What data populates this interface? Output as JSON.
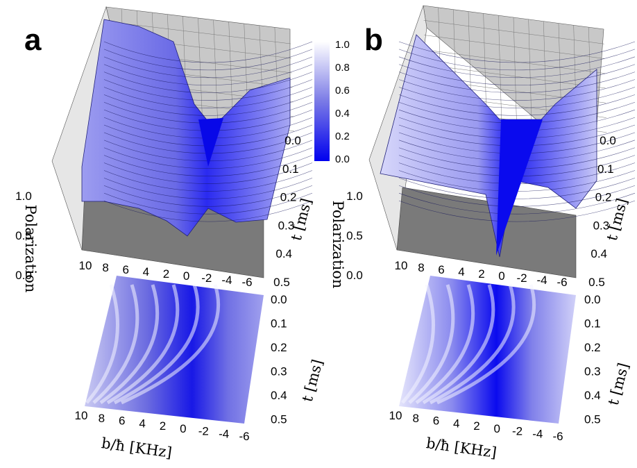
{
  "chart_data": [
    {
      "type": "surface3d",
      "panel": "a",
      "x_axis": {
        "label": "b/ħ [KHz]",
        "ticks": [
          "10",
          "8",
          "6",
          "4",
          "2",
          "0",
          "-2",
          "-4",
          "-6"
        ],
        "range": [
          10,
          -6
        ]
      },
      "t_axis": {
        "label": "t [ms]",
        "ticks": [
          "0.0",
          "0.1",
          "0.2",
          "0.3",
          "0.4",
          "0.5"
        ],
        "range": [
          0.0,
          0.5
        ]
      },
      "z_axis": {
        "label": "Polarization",
        "ticks": [
          "1.0",
          "0.5",
          "0.0"
        ],
        "range": [
          0.0,
          1.0
        ]
      },
      "colorbar": {
        "ticks": [
          "1.0",
          "0.8",
          "0.6",
          "0.4",
          "0.2",
          "0.0"
        ],
        "range": [
          0.0,
          1.0
        ],
        "low_color": "#0000ee",
        "high_color": "#ffffff"
      },
      "heatmap": {
        "x_ticks": [
          "10",
          "8",
          "6",
          "4",
          "2",
          "0",
          "-2",
          "-4",
          "-6"
        ],
        "t_ticks": [
          "0.0",
          "0.1",
          "0.2",
          "0.3",
          "0.4",
          "0.5"
        ],
        "xlabel": "b/ħ [KHz]",
        "ylabel": "t [ms]"
      }
    },
    {
      "type": "surface3d",
      "panel": "b",
      "x_axis": {
        "label": "b/ħ [KHz]",
        "ticks": [
          "10",
          "8",
          "6",
          "4",
          "2",
          "0",
          "-2",
          "-4",
          "-6"
        ],
        "range": [
          10,
          -6
        ]
      },
      "t_axis": {
        "label": "t [ms]",
        "ticks": [
          "0.0",
          "0.1",
          "0.2",
          "0.3",
          "0.4",
          "0.5"
        ],
        "range": [
          0.0,
          0.5
        ]
      },
      "z_axis": {
        "label": "Polarization",
        "ticks": [
          "1.0",
          "0.5",
          "0.0"
        ],
        "range": [
          0.0,
          1.0
        ]
      },
      "heatmap": {
        "x_ticks": [
          "10",
          "8",
          "6",
          "4",
          "2",
          "0",
          "-2",
          "-4",
          "-6"
        ],
        "t_ticks": [
          "0.0",
          "0.1",
          "0.2",
          "0.3",
          "0.4",
          "0.5"
        ],
        "xlabel": "b/ħ [KHz]",
        "ylabel": "t [ms]"
      }
    }
  ],
  "colors": {
    "wall": "#c8c8c8",
    "floor": "#7a7a7a",
    "surface_low": "#0000ee",
    "surface_high": "#e8e8ff"
  }
}
